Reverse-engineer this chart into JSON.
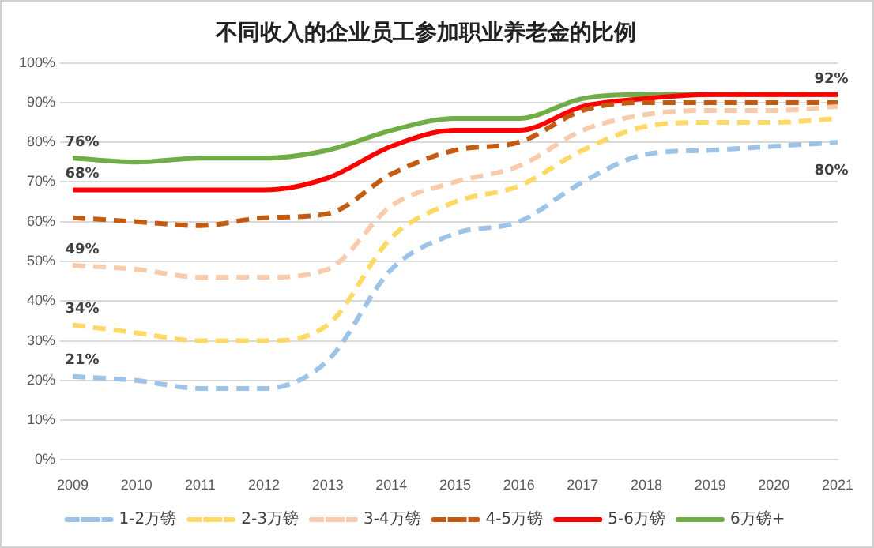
{
  "chart_data": {
    "type": "line",
    "title": "不同收入的企业员工参加职业养老金的比例",
    "categories": [
      "2009",
      "2010",
      "2011",
      "2012",
      "2013",
      "2014",
      "2015",
      "2016",
      "2017",
      "2018",
      "2019",
      "2020",
      "2021"
    ],
    "ylim": [
      0,
      100
    ],
    "yticks": [
      {
        "value": 0,
        "label": "0%"
      },
      {
        "value": 10,
        "label": "10%"
      },
      {
        "value": 20,
        "label": "20%"
      },
      {
        "value": 30,
        "label": "30%"
      },
      {
        "value": 40,
        "label": "40%"
      },
      {
        "value": 50,
        "label": "50%"
      },
      {
        "value": 60,
        "label": "60%"
      },
      {
        "value": 70,
        "label": "70%"
      },
      {
        "value": 80,
        "label": "80%"
      },
      {
        "value": 90,
        "label": "90%"
      },
      {
        "value": 100,
        "label": "100%"
      }
    ],
    "grid": "y",
    "legend": "bottom",
    "marker": "none",
    "series": [
      {
        "name": "1-2万镑",
        "color": "#9dc3e6",
        "line_style": "dashed",
        "values": [
          21,
          20,
          18,
          18,
          25,
          48,
          57,
          60,
          70,
          77,
          78,
          79,
          80
        ],
        "value_labels": [
          "21%",
          null,
          null,
          null,
          null,
          null,
          null,
          null,
          null,
          null,
          null,
          null,
          "80%"
        ]
      },
      {
        "name": "2-3万镑",
        "color": "#ffd966",
        "line_style": "dashed",
        "values": [
          34,
          32,
          30,
          30,
          34,
          56,
          65,
          69,
          78,
          84,
          85,
          85,
          86
        ],
        "value_labels": [
          "34%",
          null,
          null,
          null,
          null,
          null,
          null,
          null,
          null,
          null,
          null,
          null,
          null
        ]
      },
      {
        "name": "3-4万镑",
        "color": "#f8cbad",
        "line_style": "dashed",
        "values": [
          49,
          48,
          46,
          46,
          48,
          64,
          70,
          74,
          83,
          87,
          88,
          88,
          89
        ],
        "value_labels": [
          "49%",
          null,
          null,
          null,
          null,
          null,
          null,
          null,
          null,
          null,
          null,
          null,
          null
        ]
      },
      {
        "name": "4-5万镑",
        "color": "#c55a11",
        "line_style": "dashed",
        "values": [
          61,
          60,
          59,
          61,
          62,
          72,
          78,
          80,
          88,
          90,
          90,
          90,
          90
        ]
      },
      {
        "name": "5-6万镑",
        "color": "#ff0000",
        "line_style": "solid",
        "values": [
          68,
          68,
          68,
          68,
          71,
          79,
          83,
          83,
          89,
          91,
          92,
          92,
          92
        ],
        "value_labels": [
          "68%",
          null,
          null,
          null,
          null,
          null,
          null,
          null,
          null,
          null,
          null,
          null,
          null
        ]
      },
      {
        "name": "6万镑+",
        "color": "#70ad47",
        "line_style": "solid",
        "values": [
          76,
          75,
          76,
          76,
          78,
          83,
          86,
          86,
          91,
          92,
          92,
          92,
          92
        ],
        "value_labels": [
          "76%",
          null,
          null,
          null,
          null,
          null,
          null,
          null,
          null,
          null,
          null,
          null,
          "92%"
        ]
      }
    ]
  }
}
